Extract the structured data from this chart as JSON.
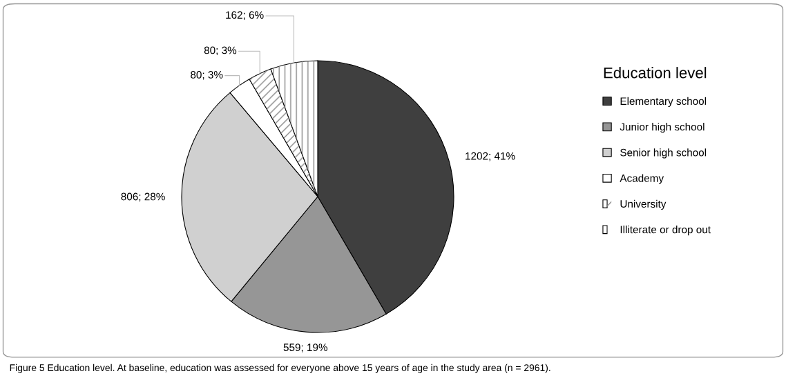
{
  "chart_data": {
    "type": "pie",
    "legend_title": "Education level",
    "legend": "right",
    "categories": [
      "Elementary school",
      "Junior high school",
      "Senior high school",
      "Academy",
      "University",
      "Illiterate or drop out"
    ],
    "values": [
      1202,
      559,
      806,
      80,
      80,
      162
    ],
    "colors": [
      "#3f3f3f",
      "#969696",
      "#d0d0d0",
      "#ffffff",
      "#ffffff",
      "#ffffff"
    ],
    "value_labels": [
      "1202; 41%",
      "559; 19%",
      "806; 28%",
      "80; 3%",
      "80; 3%",
      "162; 6%"
    ],
    "annotations": [
      "Figure 5 Education level. At baseline, education was assessed for everyone above 15 years of age in the study area (n = 2961)."
    ]
  }
}
